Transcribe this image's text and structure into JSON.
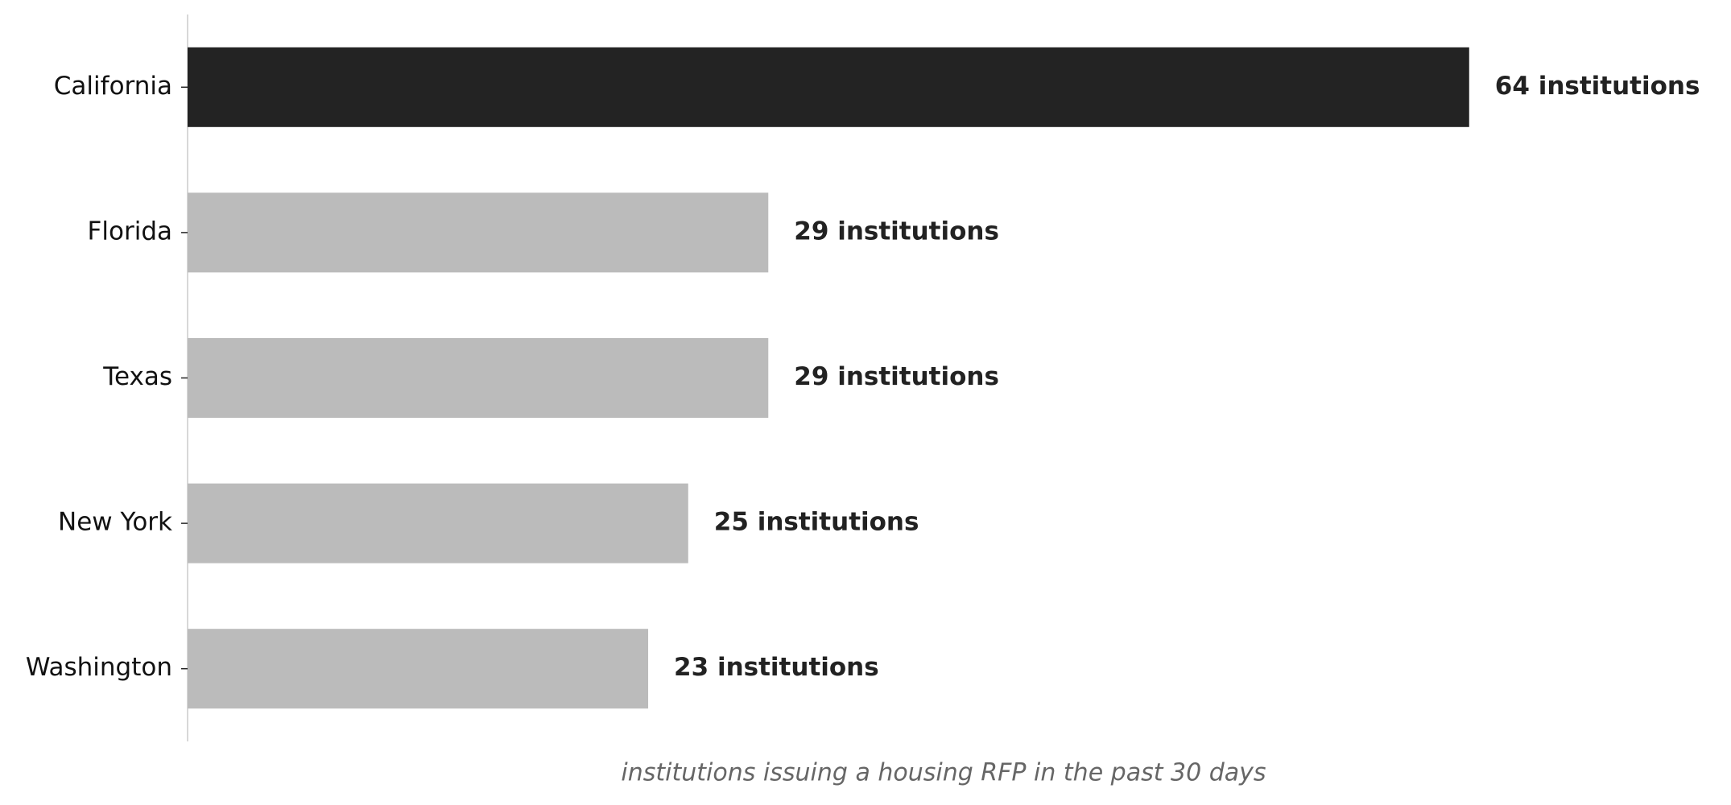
{
  "chart_data": {
    "type": "hbar",
    "categories": [
      "California",
      "Florida",
      "Texas",
      "New York",
      "Washington"
    ],
    "values": [
      64,
      29,
      29,
      25,
      23
    ],
    "value_labels": [
      "64 institutions",
      "29 institutions",
      "29 institutions",
      "25 institutions",
      "23 institutions"
    ],
    "colors": [
      "#232323",
      "#bbbbbb",
      "#bbbbbb",
      "#bbbbbb",
      "#bbbbbb"
    ],
    "xlabel": "institutions issuing a housing RFP in the past 30 days",
    "xlim": [
      0,
      70
    ]
  }
}
